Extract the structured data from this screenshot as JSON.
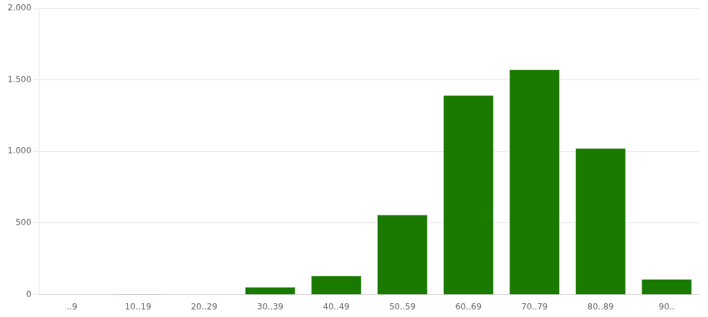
{
  "chart_data": {
    "type": "bar",
    "categories": [
      "..9",
      "10..19",
      "20..29",
      "30..39",
      "40..49",
      "50..59",
      "60..69",
      "70..79",
      "80..89",
      "90.."
    ],
    "values": [
      0,
      2,
      3,
      50,
      130,
      555,
      1390,
      1570,
      1020,
      105
    ],
    "color": "#1a7a00",
    "ylim": [
      0,
      2000
    ],
    "yticks": [
      0,
      500,
      {
        "value": 1000,
        "label": "1.000"
      },
      {
        "value": 1500,
        "label": "1.500"
      },
      {
        "value": 2000,
        "label": "2.000"
      }
    ],
    "grid": true
  }
}
